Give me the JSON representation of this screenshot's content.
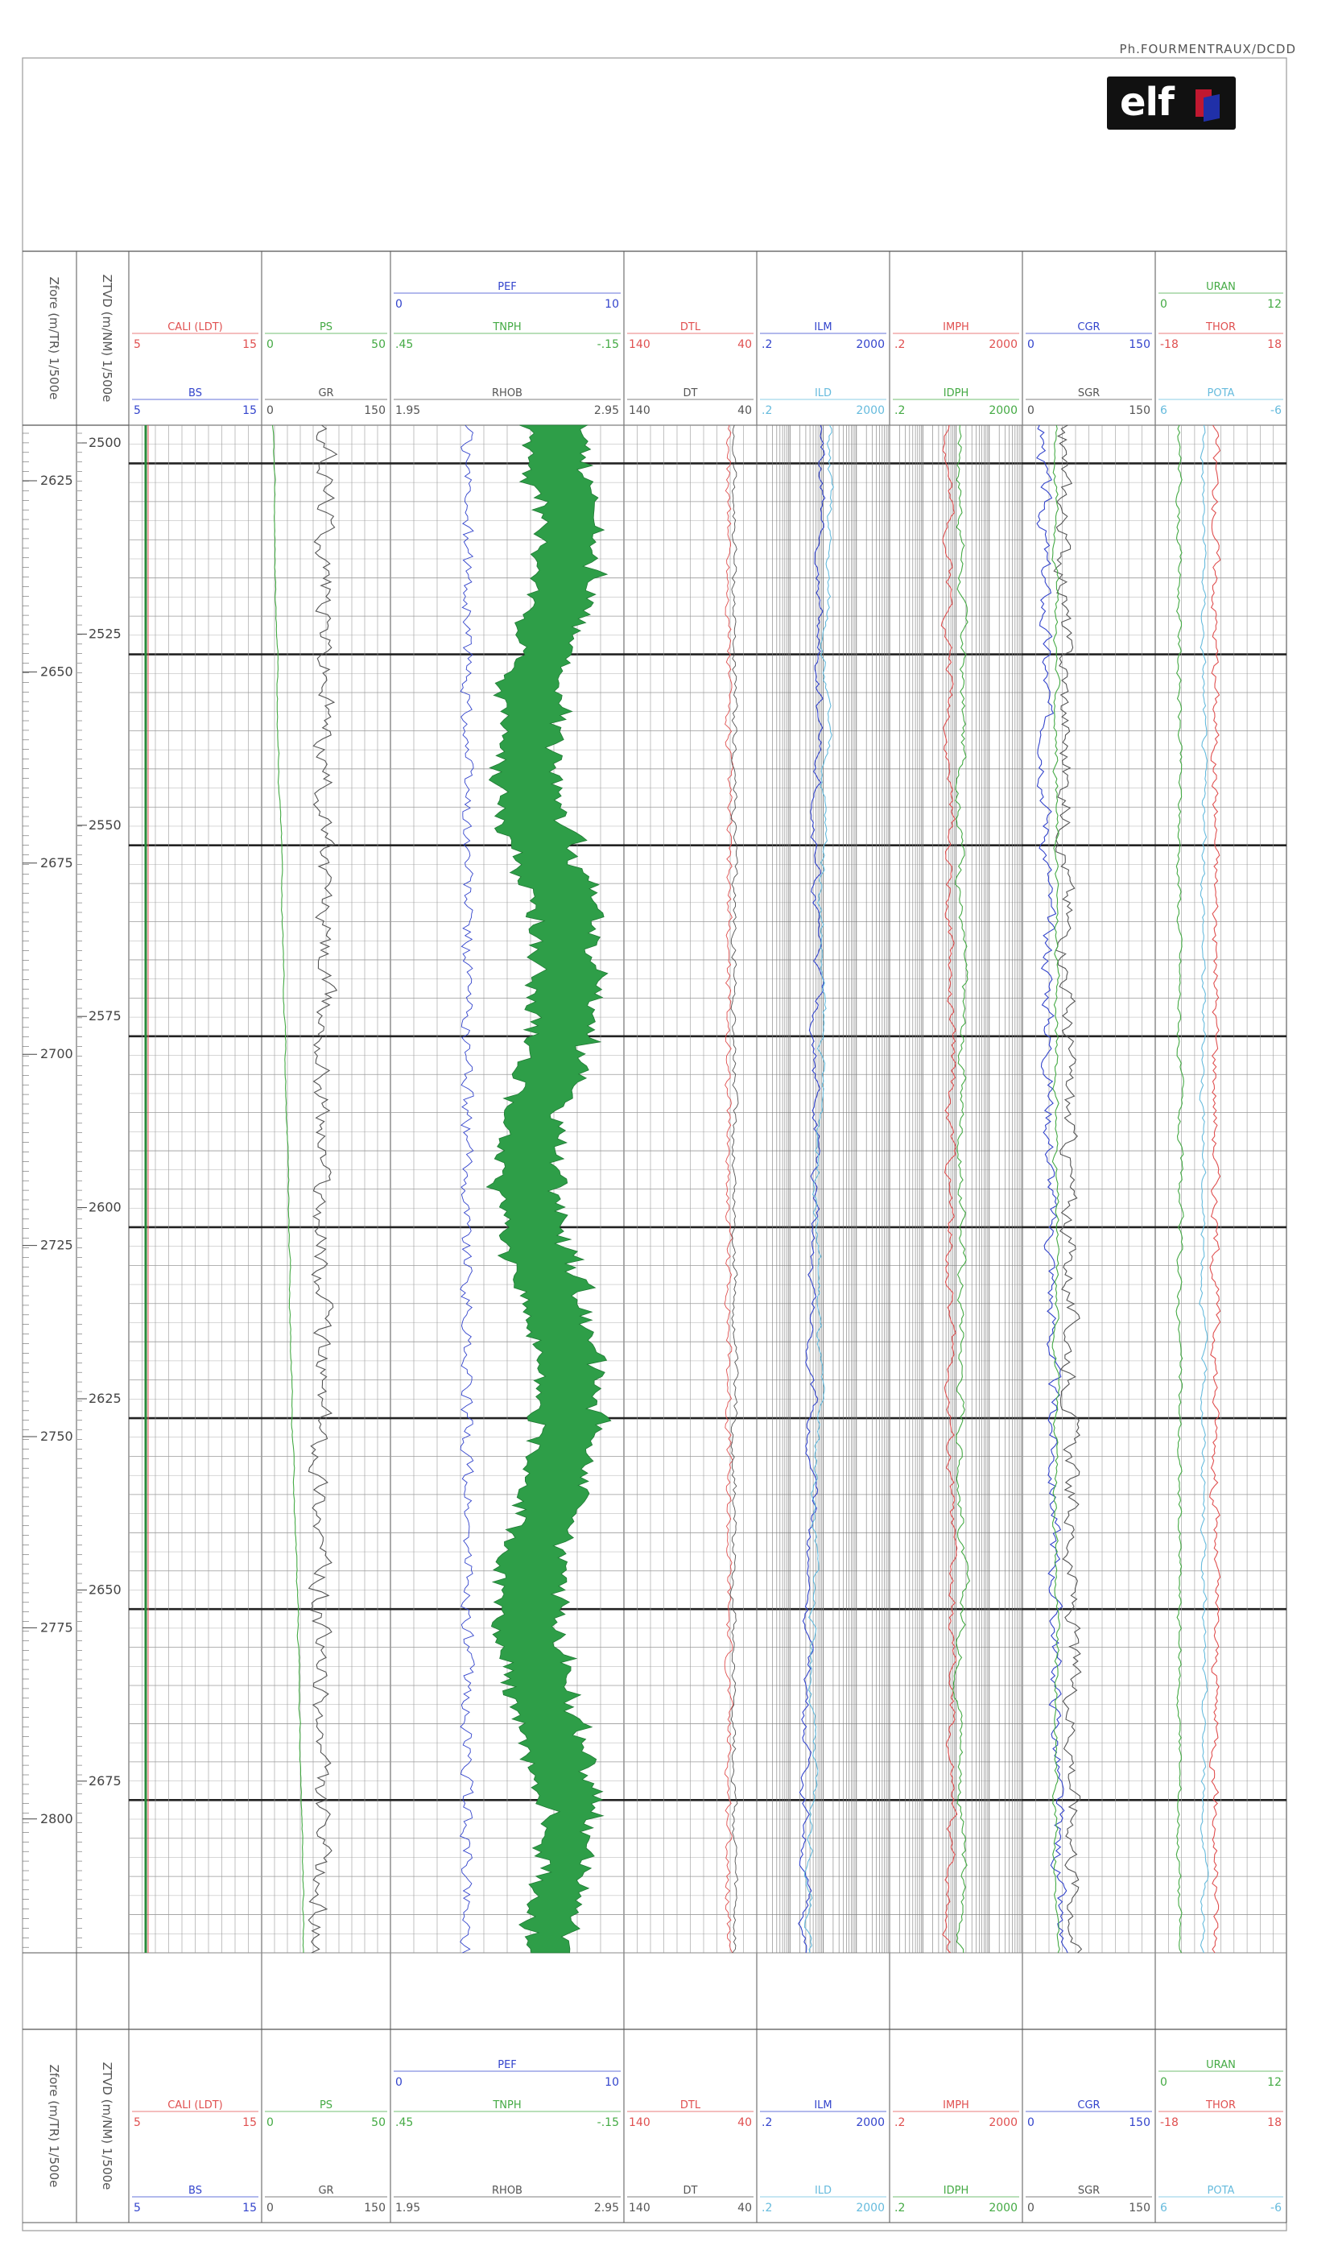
{
  "header": {
    "credit": "Ph.FOURMENTRAUX/DCDD",
    "logo_text": "elf"
  },
  "depth_tracks": {
    "md_label": "Zfore (m/TR) 1/500e",
    "tvd_label": "ZTVD (m/NM) 1/500e",
    "md_depths": [
      "2625",
      "2650",
      "2675",
      "2700",
      "2725",
      "2750",
      "2775",
      "2800"
    ],
    "tvd_depths": [
      "2500",
      "2525",
      "2550",
      "2575",
      "2600",
      "2625",
      "2650",
      "2675"
    ]
  },
  "tracks": [
    {
      "id": "cali",
      "top": null,
      "mid": {
        "name": "CALI (LDT)",
        "min": "5",
        "max": "15",
        "color": "#e05050"
      },
      "bottom": {
        "name": "BS",
        "min": "5",
        "max": "15",
        "color": "#3344cc"
      }
    },
    {
      "id": "ps",
      "top": null,
      "mid": {
        "name": "PS",
        "min": "0",
        "max": "50",
        "color": "#44aa44"
      },
      "bottom": {
        "name": "GR",
        "min": "0",
        "max": "150",
        "color": "#555555"
      }
    },
    {
      "id": "rhob",
      "top": {
        "name": "PEF",
        "min": "0",
        "max": "10",
        "color": "#3344cc"
      },
      "mid": {
        "name": "TNPH",
        "min": ".45",
        "max": "-.15",
        "color": "#44aa44"
      },
      "bottom": {
        "name": "RHOB",
        "min": "1.95",
        "max": "2.95",
        "color": "#555555"
      }
    },
    {
      "id": "dt",
      "top": null,
      "mid": {
        "name": "DTL",
        "min": "140",
        "max": "40",
        "color": "#e05050"
      },
      "bottom": {
        "name": "DT",
        "min": "140",
        "max": "40",
        "color": "#555555"
      }
    },
    {
      "id": "ilm",
      "top": null,
      "mid": {
        "name": "ILM",
        "min": ".2",
        "max": "2000",
        "color": "#3344cc"
      },
      "bottom": {
        "name": "ILD",
        "min": ".2",
        "max": "2000",
        "color": "#66bbdd"
      }
    },
    {
      "id": "imph",
      "top": null,
      "mid": {
        "name": "IMPH",
        "min": ".2",
        "max": "2000",
        "color": "#e05050"
      },
      "bottom": {
        "name": "IDPH",
        "min": ".2",
        "max": "2000",
        "color": "#44aa44"
      }
    },
    {
      "id": "cgr",
      "top": null,
      "mid": {
        "name": "CGR",
        "min": "0",
        "max": "150",
        "color": "#3344cc"
      },
      "bottom": {
        "name": "SGR",
        "min": "0",
        "max": "150",
        "color": "#555555"
      }
    },
    {
      "id": "thor",
      "top": {
        "name": "URAN",
        "min": "0",
        "max": "12",
        "color": "#44aa44"
      },
      "mid": {
        "name": "THOR",
        "min": "-18",
        "max": "18",
        "color": "#e05050"
      },
      "bottom": {
        "name": "POTA",
        "min": "6",
        "max": "-6",
        "color": "#66bbdd"
      }
    }
  ],
  "colors": {
    "fill": "#2e9e48",
    "grid": "#555555",
    "grid_light": "#9a9a9a",
    "red": "#e05050",
    "blue": "#3344cc",
    "green": "#44aa44",
    "cyan": "#66bbdd"
  }
}
